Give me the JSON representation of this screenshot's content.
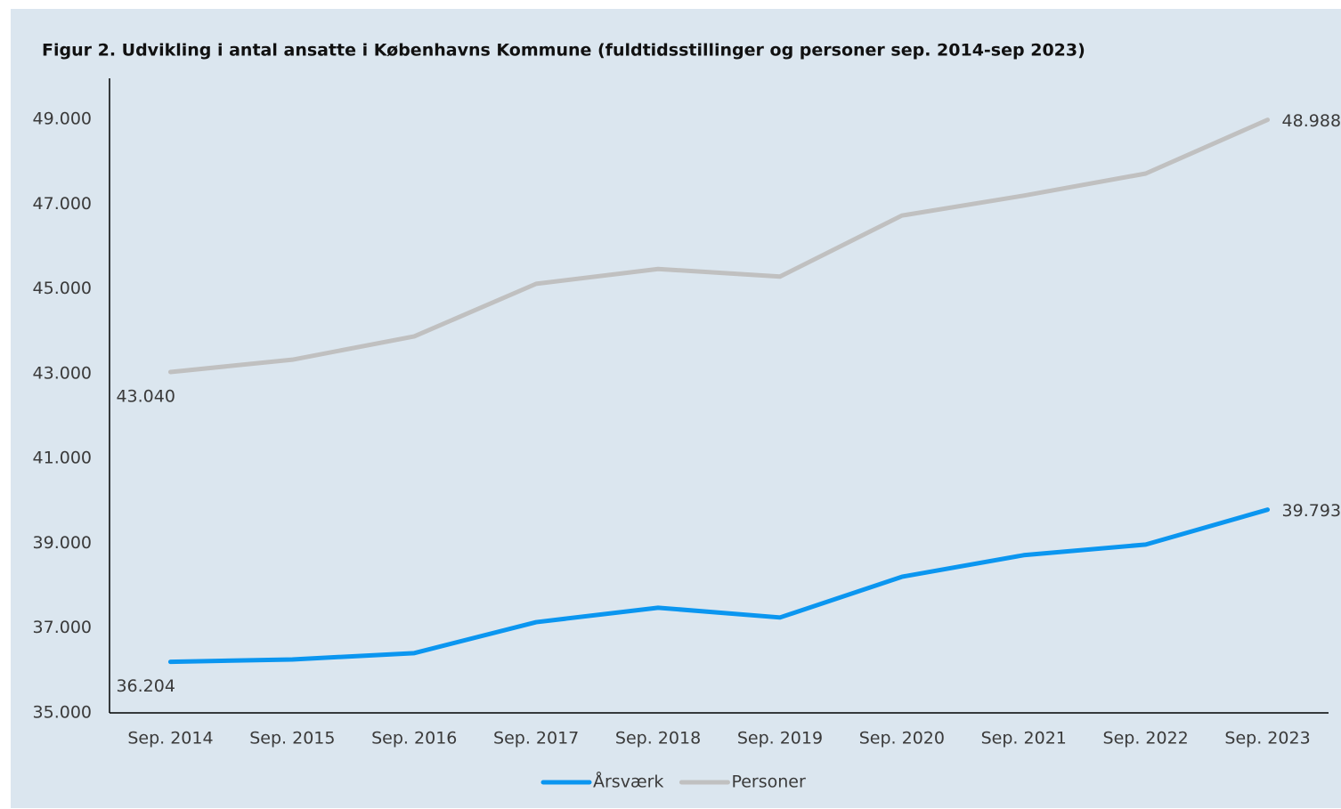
{
  "chart_data": {
    "type": "line",
    "title": "Figur 2.  Udvikling i antal ansatte i Københavns Kommune (fuldtidsstillinger og personer sep. 2014-sep 2023)",
    "categories": [
      "Sep. 2014",
      "Sep. 2015",
      "Sep. 2016",
      "Sep. 2017",
      "Sep. 2018",
      "Sep. 2019",
      "Sep. 2020",
      "Sep. 2021",
      "Sep. 2022",
      "Sep. 2023"
    ],
    "series": [
      {
        "name": "Årsværk",
        "color": "#0b96f0",
        "values": [
          36204,
          36260,
          36410,
          37140,
          37480,
          37250,
          38210,
          38720,
          38970,
          39793
        ],
        "value_labels": [
          "36.204",
          null,
          null,
          null,
          null,
          null,
          null,
          null,
          null,
          "39.793"
        ]
      },
      {
        "name": "Personer",
        "color": "#c0c0c0",
        "values": [
          43040,
          43330,
          43880,
          45120,
          45470,
          45290,
          46730,
          47200,
          47720,
          48988
        ],
        "value_labels": [
          "43.040",
          null,
          null,
          null,
          null,
          null,
          null,
          null,
          null,
          "48.988"
        ]
      }
    ],
    "ylim": [
      35000,
      50000
    ],
    "yticks": [
      {
        "value": 35000,
        "label": "35.000"
      },
      {
        "value": 37000,
        "label": "37.000"
      },
      {
        "value": 39000,
        "label": "39.000"
      },
      {
        "value": 41000,
        "label": "41.000"
      },
      {
        "value": 43000,
        "label": "43.000"
      },
      {
        "value": 45000,
        "label": "45.000"
      },
      {
        "value": 47000,
        "label": "47.000"
      },
      {
        "value": 49000,
        "label": "49.000"
      }
    ],
    "grid": false,
    "legend": "bottom"
  }
}
